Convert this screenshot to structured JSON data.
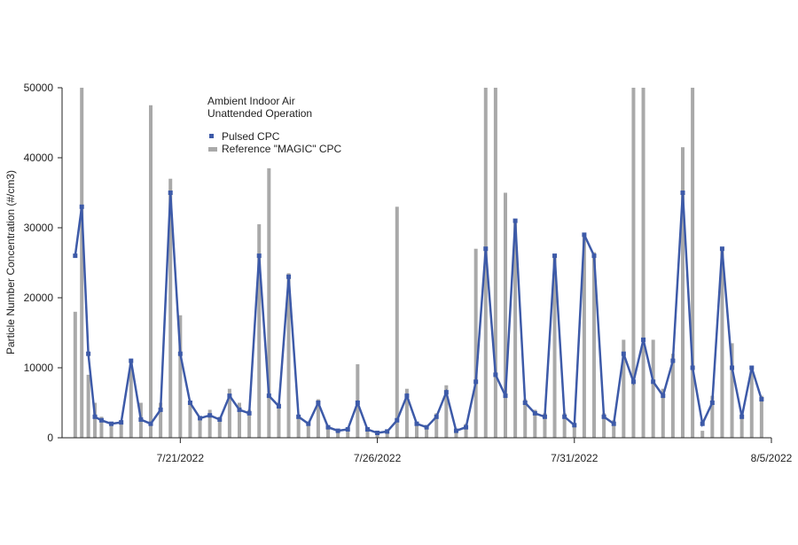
{
  "chart_data": {
    "type": "scatter",
    "title": "",
    "annotations": [
      "Ambient Indoor Air",
      "Unattended Operation"
    ],
    "xlabel": "",
    "ylabel": "Particle Number Concentration (#/cm3)",
    "x_ticks": [
      "7/21/2022",
      "7/26/2022",
      "7/31/2022",
      "8/5/2022"
    ],
    "y_ticks": [
      "0",
      "10000",
      "20000",
      "30000",
      "40000",
      "50000"
    ],
    "ylim": [
      0,
      50000
    ],
    "xlim": [
      "7/18/2022",
      "8/5/2022"
    ],
    "grid": false,
    "legend_position": "top-left",
    "series": [
      {
        "name": "Pulsed CPC",
        "color": "#3d5aa8",
        "marker": "square",
        "x": [
          "7/18/2022 08:00",
          "7/18/2022 12:00",
          "7/18/2022 16:00",
          "7/18/2022 20:00",
          "7/19/2022 00:00",
          "7/19/2022 06:00",
          "7/19/2022 12:00",
          "7/19/2022 18:00",
          "7/20/2022 00:00",
          "7/20/2022 06:00",
          "7/20/2022 12:00",
          "7/20/2022 18:00",
          "7/21/2022 00:00",
          "7/21/2022 06:00",
          "7/21/2022 12:00",
          "7/21/2022 18:00",
          "7/22/2022 00:00",
          "7/22/2022 06:00",
          "7/22/2022 12:00",
          "7/22/2022 18:00",
          "7/23/2022 00:00",
          "7/23/2022 06:00",
          "7/23/2022 12:00",
          "7/23/2022 18:00",
          "7/24/2022 00:00",
          "7/24/2022 06:00",
          "7/24/2022 12:00",
          "7/24/2022 18:00",
          "7/25/2022 00:00",
          "7/25/2022 06:00",
          "7/25/2022 12:00",
          "7/25/2022 18:00",
          "7/26/2022 00:00",
          "7/26/2022 06:00",
          "7/26/2022 12:00",
          "7/26/2022 18:00",
          "7/27/2022 00:00",
          "7/27/2022 06:00",
          "7/27/2022 12:00",
          "7/27/2022 18:00",
          "7/28/2022 00:00",
          "7/28/2022 06:00",
          "7/28/2022 12:00",
          "7/28/2022 18:00",
          "7/29/2022 00:00",
          "7/29/2022 06:00",
          "7/29/2022 12:00",
          "7/29/2022 18:00",
          "7/30/2022 00:00",
          "7/30/2022 06:00",
          "7/30/2022 12:00",
          "7/30/2022 18:00",
          "7/31/2022 00:00",
          "7/31/2022 06:00",
          "7/31/2022 12:00",
          "7/31/2022 18:00",
          "8/1/2022 00:00",
          "8/1/2022 06:00",
          "8/1/2022 12:00",
          "8/1/2022 18:00",
          "8/2/2022 00:00",
          "8/2/2022 06:00",
          "8/2/2022 12:00",
          "8/2/2022 18:00",
          "8/3/2022 00:00",
          "8/3/2022 06:00",
          "8/3/2022 12:00",
          "8/3/2022 18:00",
          "8/4/2022 00:00",
          "8/4/2022 06:00",
          "8/4/2022 12:00",
          "8/4/2022 18:00"
        ],
        "y": [
          26000,
          33000,
          12000,
          3000,
          2500,
          2000,
          2200,
          11000,
          2600,
          2000,
          4000,
          35000,
          12000,
          5000,
          2800,
          3200,
          2600,
          6000,
          4000,
          3500,
          26000,
          6000,
          4500,
          23000,
          3000,
          2000,
          5000,
          1500,
          1000,
          1200,
          5000,
          1200,
          700,
          900,
          2500,
          6000,
          2000,
          1500,
          3000,
          6500,
          1000,
          1500,
          8000,
          27000,
          9000,
          6000,
          31000,
          5000,
          3500,
          3000,
          26000,
          3000,
          1800,
          29000,
          26000,
          3000,
          2000,
          12000,
          8000,
          14000,
          8000,
          6000,
          11000,
          35000,
          10000,
          2000,
          5000,
          27000,
          10000,
          3000,
          10000,
          5500
        ]
      },
      {
        "name": "Reference \"MAGIC\" CPC",
        "color": "#a9a9a9",
        "marker": "bar",
        "x": [
          "7/18/2022 08:00",
          "7/18/2022 12:00",
          "7/18/2022 16:00",
          "7/18/2022 20:00",
          "7/19/2022 00:00",
          "7/19/2022 06:00",
          "7/19/2022 12:00",
          "7/19/2022 18:00",
          "7/20/2022 00:00",
          "7/20/2022 06:00",
          "7/20/2022 12:00",
          "7/20/2022 18:00",
          "7/21/2022 00:00",
          "7/21/2022 06:00",
          "7/21/2022 12:00",
          "7/21/2022 18:00",
          "7/22/2022 00:00",
          "7/22/2022 06:00",
          "7/22/2022 12:00",
          "7/22/2022 18:00",
          "7/23/2022 00:00",
          "7/23/2022 06:00",
          "7/23/2022 12:00",
          "7/23/2022 18:00",
          "7/24/2022 00:00",
          "7/24/2022 06:00",
          "7/24/2022 12:00",
          "7/24/2022 18:00",
          "7/25/2022 00:00",
          "7/25/2022 06:00",
          "7/25/2022 12:00",
          "7/25/2022 18:00",
          "7/26/2022 00:00",
          "7/26/2022 06:00",
          "7/26/2022 12:00",
          "7/26/2022 18:00",
          "7/27/2022 00:00",
          "7/27/2022 06:00",
          "7/27/2022 12:00",
          "7/27/2022 18:00",
          "7/28/2022 00:00",
          "7/28/2022 06:00",
          "7/28/2022 12:00",
          "7/28/2022 18:00",
          "7/29/2022 00:00",
          "7/29/2022 06:00",
          "7/29/2022 12:00",
          "7/29/2022 18:00",
          "7/30/2022 00:00",
          "7/30/2022 06:00",
          "7/30/2022 12:00",
          "7/30/2022 18:00",
          "7/31/2022 00:00",
          "7/31/2022 06:00",
          "7/31/2022 12:00",
          "7/31/2022 18:00",
          "8/1/2022 00:00",
          "8/1/2022 06:00",
          "8/1/2022 12:00",
          "8/1/2022 18:00",
          "8/2/2022 00:00",
          "8/2/2022 06:00",
          "8/2/2022 12:00",
          "8/2/2022 18:00",
          "8/3/2022 00:00",
          "8/3/2022 06:00",
          "8/3/2022 12:00",
          "8/3/2022 18:00",
          "8/4/2022 00:00",
          "8/4/2022 06:00",
          "8/4/2022 12:00",
          "8/4/2022 18:00"
        ],
        "y": [
          18000,
          50000,
          9000,
          5000,
          3000,
          2000,
          2500,
          11000,
          5000,
          47500,
          5000,
          37000,
          17500,
          5000,
          3000,
          4000,
          3000,
          7000,
          5000,
          4000,
          30500,
          38500,
          5000,
          23500,
          3000,
          2000,
          5500,
          1500,
          1000,
          1500,
          10500,
          1500,
          700,
          1000,
          33000,
          7000,
          2000,
          1500,
          3500,
          7500,
          1000,
          2000,
          27000,
          50000,
          50000,
          35000,
          31000,
          5500,
          4000,
          3500,
          26000,
          3500,
          2000,
          29000,
          26500,
          3500,
          2500,
          14000,
          50000,
          50000,
          14000,
          7000,
          12000,
          41500,
          50000,
          1000,
          6000,
          27000,
          13500,
          3500,
          10000,
          6000
        ]
      }
    ]
  }
}
